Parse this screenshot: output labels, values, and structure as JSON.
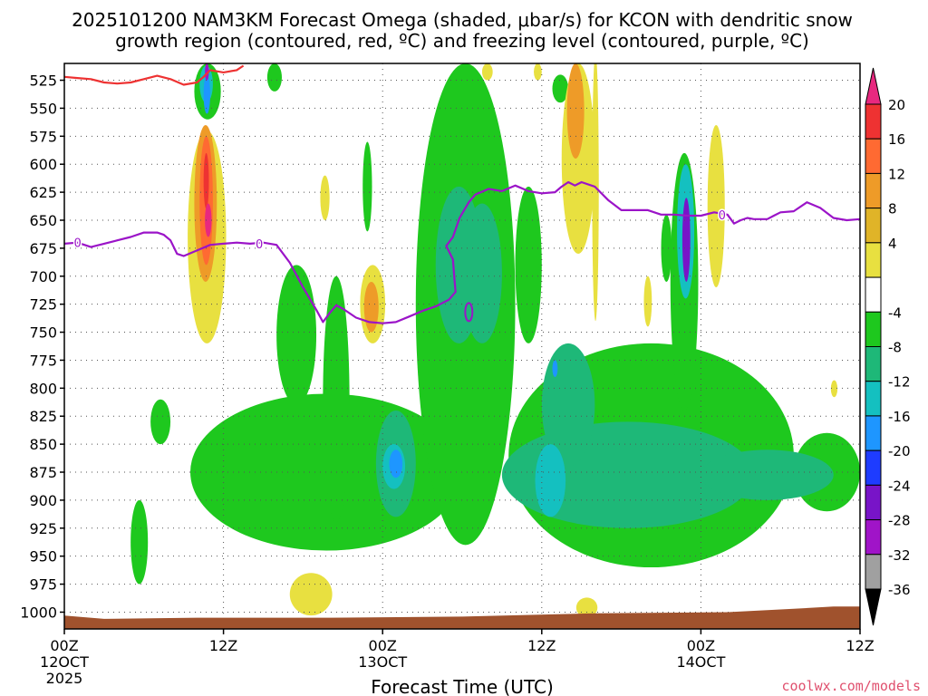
{
  "chart_data": {
    "type": "heatmap",
    "title_line1": "2025101200 NAM3KM Forecast Omega (shaded, μbar/s) for KCON with dendritic snow",
    "title_line2": "growth region (contoured, red, ºC) and freezing level (contoured, purple, ºC)",
    "xlabel": "Forecast Time (UTC)",
    "ylabel": "",
    "credit": "coolwx.com/models",
    "x_range_hours": [
      0,
      60
    ],
    "y_range_mb": [
      510,
      1015
    ],
    "x_ticks": [
      {
        "hour": 0,
        "label": "00Z",
        "sub1": "12OCT",
        "sub2": "2025"
      },
      {
        "hour": 12,
        "label": "12Z",
        "sub1": "",
        "sub2": ""
      },
      {
        "hour": 24,
        "label": "00Z",
        "sub1": "13OCT",
        "sub2": ""
      },
      {
        "hour": 36,
        "label": "12Z",
        "sub1": "",
        "sub2": ""
      },
      {
        "hour": 48,
        "label": "00Z",
        "sub1": "14OCT",
        "sub2": ""
      },
      {
        "hour": 60,
        "label": "12Z",
        "sub1": "",
        "sub2": ""
      }
    ],
    "y_ticks": [
      525,
      550,
      575,
      600,
      625,
      650,
      675,
      700,
      725,
      750,
      775,
      800,
      825,
      850,
      875,
      900,
      925,
      950,
      975,
      1000
    ],
    "colorbar": {
      "top_cap_color": "#e8287f",
      "bottom_cap_color": "#000000",
      "bands": [
        {
          "color": "#ee3232",
          "label": "20"
        },
        {
          "color": "#ff6a32",
          "label": "16"
        },
        {
          "color": "#ee9b28",
          "label": "12"
        },
        {
          "color": "#e0b428",
          "label": "8"
        },
        {
          "color": "#e8e040",
          "label": "4"
        },
        {
          "color": "#ffffff",
          "label": ""
        },
        {
          "color": "#1ec81e",
          "label": "-4"
        },
        {
          "color": "#1eb878",
          "label": "-8"
        },
        {
          "color": "#14c0c0",
          "label": "-12"
        },
        {
          "color": "#1e96ff",
          "label": "-16"
        },
        {
          "color": "#1e3cff",
          "label": "-20"
        },
        {
          "color": "#7814c8",
          "label": "-24"
        },
        {
          "color": "#a014c8",
          "label": "-28"
        },
        {
          "color": "#a0a0a0",
          "label": "-32"
        }
      ],
      "bottom_label": "-36"
    },
    "terrain_color": "#a0522d",
    "dgz_color": "#ee3232",
    "freezing_color": "#9b14c8",
    "freezing_labels": [
      "0",
      "0",
      "0"
    ],
    "series": [
      {
        "name": "dendritic snow growth region (red)",
        "points": [
          [
            0,
            522
          ],
          [
            1,
            523
          ],
          [
            2,
            524
          ],
          [
            3,
            527
          ],
          [
            4,
            528
          ],
          [
            5,
            527
          ],
          [
            6,
            524
          ],
          [
            7,
            521
          ],
          [
            8,
            524
          ],
          [
            9,
            529
          ],
          [
            10,
            527
          ],
          [
            10.5,
            522
          ],
          [
            11,
            516
          ],
          [
            12,
            518
          ],
          [
            13,
            516
          ],
          [
            13.5,
            512
          ]
        ]
      },
      {
        "name": "freezing level (purple)",
        "points": [
          [
            0,
            671
          ],
          [
            1,
            670
          ],
          [
            2,
            674
          ],
          [
            3,
            671
          ],
          [
            4,
            668
          ],
          [
            5,
            665
          ],
          [
            6,
            661
          ],
          [
            7,
            661
          ],
          [
            7.5,
            663
          ],
          [
            8,
            668
          ],
          [
            8.5,
            680
          ],
          [
            9,
            682
          ],
          [
            10,
            677
          ],
          [
            11,
            672
          ],
          [
            12,
            671
          ],
          [
            13,
            670
          ],
          [
            14,
            671
          ],
          [
            15,
            670
          ],
          [
            16,
            672
          ],
          [
            17,
            688
          ],
          [
            18,
            710
          ],
          [
            19,
            730
          ],
          [
            19.5,
            741
          ],
          [
            20,
            733
          ],
          [
            20.5,
            726
          ],
          [
            21,
            729
          ],
          [
            22,
            737
          ],
          [
            23,
            741
          ],
          [
            24,
            742
          ],
          [
            25,
            741
          ],
          [
            26,
            736
          ],
          [
            27,
            731
          ],
          [
            28,
            727
          ],
          [
            29,
            721
          ],
          [
            29.5,
            714
          ],
          [
            29.4,
            700
          ],
          [
            29.3,
            685
          ],
          [
            28.8,
            673
          ],
          [
            29.3,
            665
          ],
          [
            29.8,
            648
          ],
          [
            30.5,
            634
          ],
          [
            31,
            627
          ],
          [
            32,
            622
          ],
          [
            33,
            624
          ],
          [
            34,
            619
          ],
          [
            35,
            624
          ],
          [
            36,
            626
          ],
          [
            37,
            625
          ],
          [
            37.5,
            620
          ],
          [
            38,
            616
          ],
          [
            38.5,
            619
          ],
          [
            39,
            616
          ],
          [
            40,
            620
          ],
          [
            41,
            632
          ],
          [
            42,
            641
          ],
          [
            43,
            641
          ],
          [
            44,
            641
          ],
          [
            45,
            645
          ],
          [
            46,
            645
          ],
          [
            47,
            646
          ],
          [
            48,
            646
          ],
          [
            49,
            643
          ],
          [
            50,
            645
          ],
          [
            50.5,
            653
          ],
          [
            51,
            650
          ],
          [
            51.5,
            648
          ],
          [
            52,
            649
          ],
          [
            53,
            649
          ],
          [
            53.5,
            646
          ],
          [
            54,
            643
          ],
          [
            55,
            642
          ],
          [
            56,
            634
          ],
          [
            57,
            639
          ],
          [
            58,
            648
          ],
          [
            59,
            650
          ],
          [
            60,
            649
          ]
        ]
      }
    ],
    "omega_regions": [
      {
        "color": "#e8e040",
        "hmin": 9.3,
        "hmax": 12.2,
        "pmin": 570,
        "pmax": 760
      },
      {
        "color": "#ee9b28",
        "hmin": 9.8,
        "hmax": 11.5,
        "pmin": 565,
        "pmax": 705
      },
      {
        "color": "#ff6a32",
        "hmin": 10.2,
        "hmax": 11.2,
        "pmin": 575,
        "pmax": 690
      },
      {
        "color": "#ee3232",
        "hmin": 10.5,
        "hmax": 10.9,
        "pmin": 590,
        "pmax": 640
      },
      {
        "color": "#e8287f",
        "hmin": 10.6,
        "hmax": 11.1,
        "pmin": 635,
        "pmax": 665
      },
      {
        "color": "#1ec81e",
        "hmin": 9.8,
        "hmax": 11.8,
        "pmin": 510,
        "pmax": 560
      },
      {
        "color": "#14c0c0",
        "hmin": 10.2,
        "hmax": 11.2,
        "pmin": 512,
        "pmax": 545
      },
      {
        "color": "#1e96ff",
        "hmin": 10.5,
        "hmax": 11.0,
        "pmin": 520,
        "pmax": 555
      },
      {
        "color": "#a014c8",
        "hmin": 10.6,
        "hmax": 10.9,
        "pmin": 510,
        "pmax": 525
      },
      {
        "color": "#1ec81e",
        "hmin": 6.5,
        "hmax": 8.0,
        "pmin": 810,
        "pmax": 850
      },
      {
        "color": "#1ec81e",
        "hmin": 5.0,
        "hmax": 6.3,
        "pmin": 900,
        "pmax": 975
      },
      {
        "color": "#1ec81e",
        "hmin": 9.5,
        "hmax": 30.0,
        "pmin": 805,
        "pmax": 945
      },
      {
        "color": "#1ec81e",
        "hmin": 16.0,
        "hmax": 19.0,
        "pmin": 690,
        "pmax": 815
      },
      {
        "color": "#1ec81e",
        "hmin": 19.5,
        "hmax": 21.5,
        "pmin": 700,
        "pmax": 920
      },
      {
        "color": "#1ec81e",
        "hmin": 26.5,
        "hmax": 34.0,
        "pmin": 510,
        "pmax": 940
      },
      {
        "color": "#1ec81e",
        "hmin": 33.5,
        "hmax": 55.0,
        "pmin": 760,
        "pmax": 960
      },
      {
        "color": "#1ec81e",
        "hmin": 55.0,
        "hmax": 60.0,
        "pmin": 840,
        "pmax": 910
      },
      {
        "color": "#1ec81e",
        "hmin": 45.7,
        "hmax": 47.8,
        "pmin": 590,
        "pmax": 820
      },
      {
        "color": "#1ec81e",
        "hmin": 45.0,
        "hmax": 45.8,
        "pmin": 645,
        "pmax": 705
      },
      {
        "color": "#1ec81e",
        "hmin": 36.8,
        "hmax": 38.0,
        "pmin": 520,
        "pmax": 545
      },
      {
        "color": "#1ec81e",
        "hmin": 15.3,
        "hmax": 16.4,
        "pmin": 510,
        "pmax": 535
      },
      {
        "color": "#1ec81e",
        "hmin": 22.5,
        "hmax": 23.2,
        "pmin": 580,
        "pmax": 660
      },
      {
        "color": "#1ec81e",
        "hmin": 34.0,
        "hmax": 36.0,
        "pmin": 620,
        "pmax": 760
      },
      {
        "color": "#1eb878",
        "hmin": 23.5,
        "hmax": 26.5,
        "pmin": 820,
        "pmax": 915
      },
      {
        "color": "#1eb878",
        "hmin": 28.0,
        "hmax": 31.5,
        "pmin": 620,
        "pmax": 760
      },
      {
        "color": "#1eb878",
        "hmin": 30.0,
        "hmax": 33.0,
        "pmin": 635,
        "pmax": 760
      },
      {
        "color": "#1eb878",
        "hmin": 33.0,
        "hmax": 52.0,
        "pmin": 830,
        "pmax": 925
      },
      {
        "color": "#1eb878",
        "hmin": 36.0,
        "hmax": 40.0,
        "pmin": 760,
        "pmax": 870
      },
      {
        "color": "#1eb878",
        "hmin": 48.0,
        "hmax": 58.0,
        "pmin": 855,
        "pmax": 900
      },
      {
        "color": "#14c0c0",
        "hmin": 24.0,
        "hmax": 25.7,
        "pmin": 850,
        "pmax": 890
      },
      {
        "color": "#14c0c0",
        "hmin": 35.5,
        "hmax": 37.8,
        "pmin": 850,
        "pmax": 915
      },
      {
        "color": "#14c0c0",
        "hmin": 46.2,
        "hmax": 47.5,
        "pmin": 600,
        "pmax": 720
      },
      {
        "color": "#1e96ff",
        "hmin": 24.5,
        "hmax": 25.5,
        "pmin": 855,
        "pmax": 880
      },
      {
        "color": "#1e96ff",
        "hmin": 36.8,
        "hmax": 37.2,
        "pmin": 775,
        "pmax": 790
      },
      {
        "color": "#7814c8",
        "hmin": 46.6,
        "hmax": 47.2,
        "pmin": 630,
        "pmax": 705
      },
      {
        "color": "#e8e040",
        "hmin": 19.3,
        "hmax": 20.0,
        "pmin": 610,
        "pmax": 650
      },
      {
        "color": "#e8e040",
        "hmin": 22.3,
        "hmax": 24.2,
        "pmin": 690,
        "pmax": 760
      },
      {
        "color": "#ee9b28",
        "hmin": 22.6,
        "hmax": 23.7,
        "pmin": 705,
        "pmax": 750
      },
      {
        "color": "#e8e040",
        "hmin": 37.5,
        "hmax": 40.0,
        "pmin": 510,
        "pmax": 680
      },
      {
        "color": "#ee9b28",
        "hmin": 37.9,
        "hmax": 39.2,
        "pmin": 510,
        "pmax": 595
      },
      {
        "color": "#e8e040",
        "hmin": 31.5,
        "hmax": 32.3,
        "pmin": 510,
        "pmax": 525
      },
      {
        "color": "#e8e040",
        "hmin": 35.4,
        "hmax": 36.0,
        "pmin": 510,
        "pmax": 525
      },
      {
        "color": "#e8e040",
        "hmin": 38.6,
        "hmax": 40.2,
        "pmin": 987,
        "pmax": 1005
      },
      {
        "color": "#e8e040",
        "hmin": 17.0,
        "hmax": 20.2,
        "pmin": 965,
        "pmax": 1003
      },
      {
        "color": "#e8e040",
        "hmin": 48.5,
        "hmax": 49.8,
        "pmin": 565,
        "pmax": 710
      },
      {
        "color": "#e8e040",
        "hmin": 43.7,
        "hmax": 44.3,
        "pmin": 700,
        "pmax": 745
      },
      {
        "color": "#e8e040",
        "hmin": 39.8,
        "hmax": 40.3,
        "pmin": 500,
        "pmax": 740
      },
      {
        "color": "#e8e040",
        "hmin": 57.8,
        "hmax": 58.3,
        "pmin": 793,
        "pmax": 808
      }
    ]
  }
}
